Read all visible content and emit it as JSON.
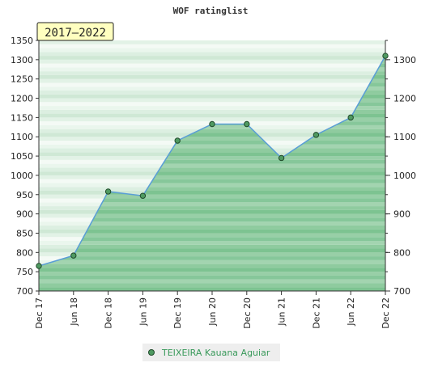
{
  "chart_data": {
    "type": "area",
    "title": "WOF ratinglist",
    "badge": "2017–2022",
    "x_labels": [
      "Dec 17",
      "Jun 18",
      "Dec 18",
      "Jun 19",
      "Dec 19",
      "Jun 20",
      "Dec 20",
      "Jun 21",
      "Dec 21",
      "Jun 22",
      "Dec 22"
    ],
    "left_ticks": [
      700,
      750,
      800,
      850,
      900,
      950,
      1000,
      1050,
      1100,
      1150,
      1200,
      1250,
      1300,
      1350
    ],
    "right_ticks": [
      700,
      800,
      900,
      1000,
      1100,
      1200,
      1300
    ],
    "ylim": [
      700,
      1350
    ],
    "grid": false,
    "legend_position": "bottom",
    "series": [
      {
        "name": "TEIXEIRA Kauana Aguiar",
        "values": [
          765,
          792,
          958,
          947,
          1090,
          1133,
          1133,
          1045,
          1105,
          1150,
          1310
        ]
      }
    ],
    "colors": {
      "line": "#5a9ed6",
      "marker": "#4f9a61",
      "fill": "#78c08c",
      "badge_bg": "#ffffc0"
    }
  }
}
